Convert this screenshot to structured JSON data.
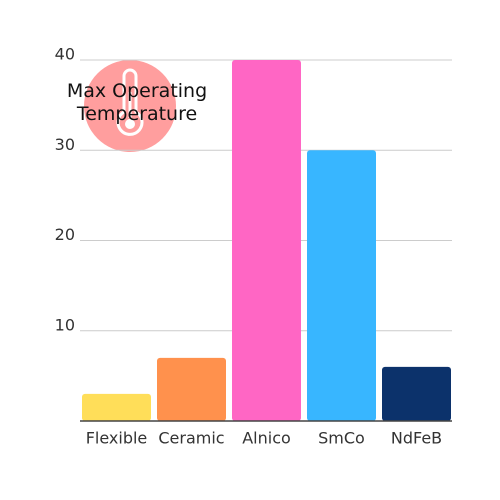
{
  "chart_data": {
    "type": "bar",
    "title": "Max Operating Temperature",
    "categories": [
      "Flexible",
      "Ceramic",
      "Alnico",
      "SmCo",
      "NdFeB"
    ],
    "values": [
      3,
      7,
      40,
      30,
      6
    ],
    "colors": [
      "#ffde59",
      "#ff914d",
      "#ff66c4",
      "#38b6ff",
      "#0c326b"
    ],
    "ylim": [
      0,
      40
    ],
    "yticks": [
      10,
      20,
      30,
      40
    ],
    "grid": true
  }
}
